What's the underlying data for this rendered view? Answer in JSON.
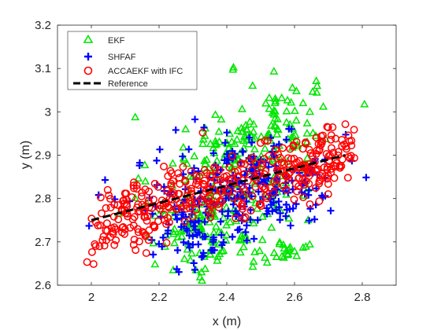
{
  "chart_data": {
    "type": "scatter",
    "title": "",
    "xlabel": "x (m)",
    "ylabel": "y (m)",
    "xlim": [
      1.9,
      2.9
    ],
    "ylim": [
      2.6,
      3.2
    ],
    "x_ticks": [
      "2",
      "2.2",
      "2.4",
      "2.6",
      "2.8"
    ],
    "y_ticks": [
      "2.6",
      "2.7",
      "2.8",
      "2.9",
      "3",
      "3.1",
      "3.2"
    ],
    "x_tick_values": [
      2.0,
      2.2,
      2.4,
      2.6,
      2.8
    ],
    "y_tick_values": [
      2.6,
      2.7,
      2.8,
      2.9,
      3.0,
      3.1,
      3.2
    ],
    "grid": false,
    "legend_position": "top-left",
    "reference": {
      "x": [
        2.0,
        2.75
      ],
      "y": [
        2.75,
        2.9
      ]
    },
    "series": [
      {
        "name": "EKF",
        "marker": "triangle",
        "color": "#00e600",
        "clusters": [
          {
            "cx": 2.42,
            "cy": 2.87,
            "sx": 0.12,
            "sy": 0.09,
            "n": 180
          },
          {
            "cx": 2.55,
            "cy": 2.96,
            "sx": 0.08,
            "sy": 0.05,
            "n": 60
          },
          {
            "cx": 2.38,
            "cy": 2.7,
            "sx": 0.08,
            "sy": 0.04,
            "n": 60
          },
          {
            "cx": 2.58,
            "cy": 2.68,
            "sx": 0.04,
            "sy": 0.02,
            "n": 20
          },
          {
            "cx": 2.28,
            "cy": 2.75,
            "sx": 0.06,
            "sy": 0.03,
            "n": 30
          }
        ]
      },
      {
        "name": "SHFAF",
        "marker": "plus",
        "color": "#0000ff",
        "clusters": [
          {
            "cx": 2.4,
            "cy": 2.82,
            "sx": 0.14,
            "sy": 0.06,
            "n": 190
          },
          {
            "cx": 2.32,
            "cy": 2.7,
            "sx": 0.06,
            "sy": 0.03,
            "n": 35
          },
          {
            "cx": 2.52,
            "cy": 2.85,
            "sx": 0.08,
            "sy": 0.05,
            "n": 50
          },
          {
            "cx": 2.62,
            "cy": 2.8,
            "sx": 0.05,
            "sy": 0.03,
            "n": 25
          }
        ]
      },
      {
        "name": "ACCAEKF with IFC",
        "marker": "circle",
        "color": "#ff0000",
        "clusters": [
          {
            "along": [
              2.0,
              2.78
            ],
            "width": 0.035,
            "n": 340
          },
          {
            "cx": 2.12,
            "cy": 2.72,
            "sx": 0.06,
            "sy": 0.03,
            "n": 30
          },
          {
            "cx": 2.65,
            "cy": 2.87,
            "sx": 0.06,
            "sy": 0.03,
            "n": 45
          }
        ]
      },
      {
        "name": "Reference",
        "marker": "dash-line",
        "color": "#000000"
      }
    ]
  }
}
